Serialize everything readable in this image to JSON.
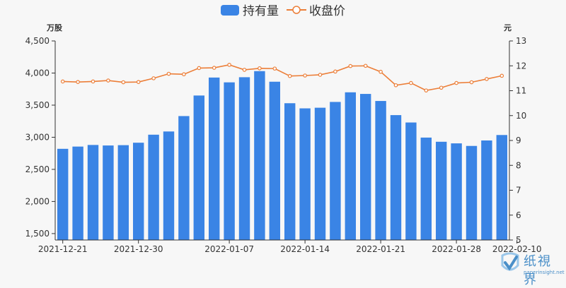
{
  "chart_data": {
    "type": "bar+line",
    "legend": [
      {
        "name": "持有量",
        "type": "bar",
        "color": "#3a84e5"
      },
      {
        "name": "收盘价",
        "type": "line",
        "color": "#ec7e38"
      }
    ],
    "left_unit": "万股",
    "right_unit": "元",
    "left_axis": {
      "min": 1400,
      "max": 4500,
      "ticks": [
        1500,
        2000,
        2500,
        3000,
        3500,
        4000,
        4500
      ],
      "tick_labels": [
        "1,500",
        "2,000",
        "2,500",
        "3,000",
        "3,500",
        "4,000",
        "4,500"
      ]
    },
    "right_axis": {
      "min": 5,
      "max": 13,
      "ticks": [
        5,
        6,
        7,
        8,
        9,
        10,
        11,
        12,
        13
      ],
      "tick_labels": [
        "5",
        "6",
        "7",
        "8",
        "9",
        "10",
        "11",
        "12",
        "13"
      ]
    },
    "x_labels": [
      {
        "index": 0,
        "text": "2021-12-21"
      },
      {
        "index": 5,
        "text": "2021-12-30"
      },
      {
        "index": 11,
        "text": "2022-01-07"
      },
      {
        "index": 16,
        "text": "2022-01-14"
      },
      {
        "index": 21,
        "text": "2022-01-21"
      },
      {
        "index": 26,
        "text": "2022-01-28"
      },
      {
        "index": 30,
        "text": "2022-02-10"
      }
    ],
    "series": [
      {
        "name": "持有量",
        "values": [
          2820,
          2855,
          2880,
          2872,
          2877,
          2915,
          3040,
          3090,
          3330,
          3650,
          3930,
          3855,
          3935,
          4030,
          3865,
          3530,
          3450,
          3460,
          3550,
          3700,
          3675,
          3565,
          3345,
          3230,
          2995,
          2930,
          2905,
          2865,
          2950,
          3035
        ]
      },
      {
        "name": "收盘价",
        "values": [
          11.37,
          11.35,
          11.37,
          11.41,
          11.34,
          11.35,
          11.5,
          11.68,
          11.66,
          11.91,
          11.92,
          12.04,
          11.84,
          11.9,
          11.89,
          11.59,
          11.61,
          11.64,
          11.77,
          11.99,
          12.0,
          11.76,
          11.22,
          11.31,
          11.01,
          11.12,
          11.31,
          11.34,
          11.47,
          11.6
        ]
      }
    ]
  },
  "watermark": {
    "name": "纸視界",
    "url": "paperinsight.net"
  }
}
